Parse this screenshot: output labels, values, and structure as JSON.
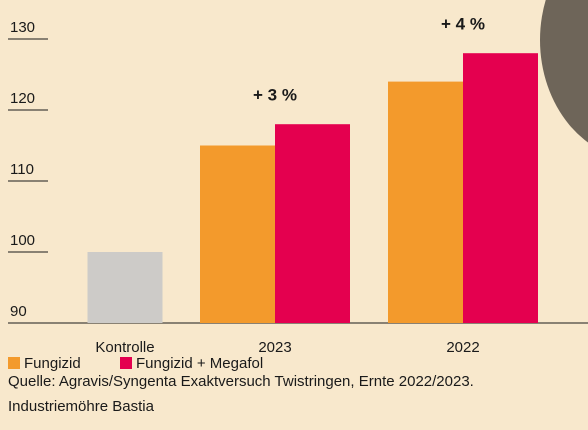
{
  "chart_data": {
    "type": "bar",
    "categories": [
      "Kontrolle",
      "2023",
      "2022"
    ],
    "control_value": 100,
    "control_color": "#cdcbc8",
    "series": [
      {
        "name": "Fungizid",
        "color": "#f39a2c",
        "values": [
          null,
          115,
          124
        ]
      },
      {
        "name": "Fungizid + Megafol",
        "color": "#e4004f",
        "values": [
          null,
          118,
          128
        ]
      }
    ],
    "annotations": [
      "+ 3 %",
      "+ 4 %"
    ],
    "ylim": [
      90,
      130
    ],
    "yticks": [
      90,
      100,
      110,
      120,
      130
    ],
    "source": "Quelle: Agravis/Syngenta Exaktversuch Twistringen, Ernte 2022/2023.",
    "credit": "Industriemöhre Bastia"
  }
}
